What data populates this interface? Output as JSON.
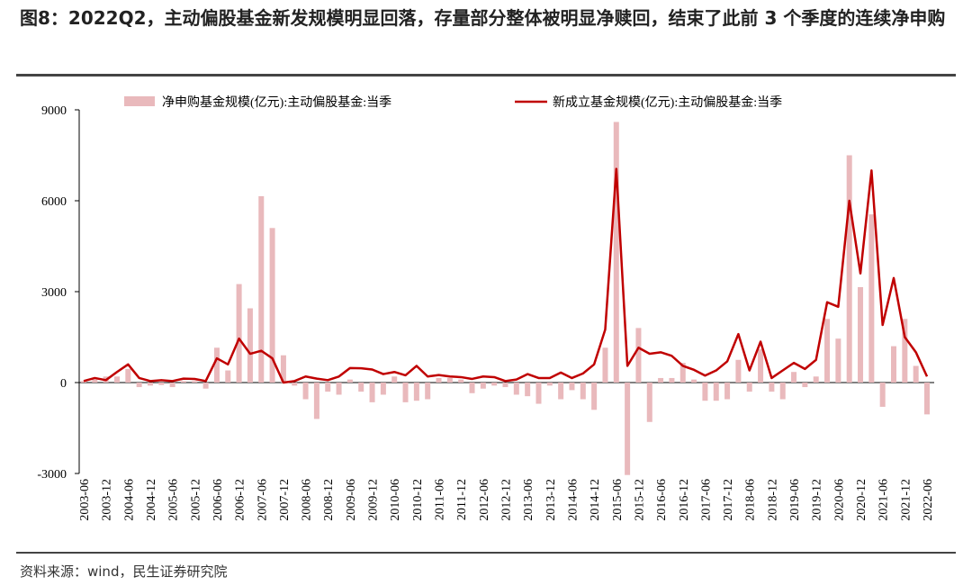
{
  "chart_data": {
    "type": "bar",
    "title": "图8：2022Q2，主动偏股基金新发规模明显回落，存量部分整体被明显净赎回，结束了此前 3 个季度的连续净申购",
    "source": "资料来源：wind，民生证券研究院",
    "categories": [
      "2003-06",
      null,
      "2003-12",
      null,
      "2004-06",
      null,
      "2004-12",
      null,
      "2005-06",
      null,
      "2005-12",
      null,
      "2006-06",
      null,
      "2006-12",
      null,
      "2007-06",
      null,
      "2007-12",
      null,
      "2008-06",
      null,
      "2008-12",
      null,
      "2009-06",
      null,
      "2009-12",
      null,
      "2010-06",
      null,
      "2010-12",
      null,
      "2011-06",
      null,
      "2011-12",
      null,
      "2012-06",
      null,
      "2012-12",
      null,
      "2013-06",
      null,
      "2013-12",
      null,
      "2014-06",
      null,
      "2014-12",
      null,
      "2015-06",
      null,
      "2015-12",
      null,
      "2016-06",
      null,
      "2016-12",
      null,
      "2017-06",
      null,
      "2017-12",
      null,
      "2018-06",
      null,
      "2018-12",
      null,
      "2019-06",
      null,
      "2019-12",
      null,
      "2020-06",
      null,
      "2020-12",
      null,
      "2021-06",
      null,
      "2021-12",
      null,
      "2022-06"
    ],
    "series": [
      {
        "name": "净申购基金规模(亿元):主动偏股基金:当季",
        "type": "bar",
        "color": "#e9b9bc",
        "values": [
          50,
          100,
          200,
          200,
          450,
          -150,
          -100,
          -80,
          -150,
          50,
          50,
          -200,
          1150,
          400,
          3250,
          2450,
          6150,
          5100,
          900,
          -100,
          -550,
          -1200,
          -300,
          -400,
          100,
          -300,
          -650,
          -400,
          200,
          -650,
          -600,
          -550,
          150,
          150,
          100,
          -350,
          -200,
          -100,
          -150,
          -400,
          -450,
          -700,
          -100,
          -550,
          -250,
          -550,
          -900,
          1150,
          8600,
          -3050,
          1800,
          -1300,
          150,
          150,
          650,
          100,
          -600,
          -600,
          -550,
          750,
          -300,
          1100,
          -300,
          -550,
          350,
          -150,
          200,
          2100,
          1450,
          7500,
          3150,
          5550,
          -800,
          1200,
          2100,
          550,
          -1050
        ]
      },
      {
        "name": "新成立基金规模(亿元):主动偏股基金:当季",
        "type": "line",
        "color": "#c00000",
        "values": [
          50,
          150,
          80,
          350,
          600,
          150,
          50,
          80,
          50,
          130,
          120,
          50,
          800,
          600,
          1450,
          950,
          1050,
          800,
          0,
          50,
          200,
          130,
          80,
          200,
          480,
          470,
          430,
          280,
          350,
          240,
          550,
          200,
          250,
          200,
          180,
          120,
          200,
          180,
          50,
          100,
          280,
          150,
          150,
          330,
          150,
          300,
          600,
          1750,
          7050,
          550,
          1150,
          950,
          1000,
          880,
          550,
          420,
          230,
          400,
          700,
          1600,
          400,
          1350,
          150,
          400,
          650,
          450,
          750,
          2650,
          2500,
          6000,
          3600,
          7000,
          1900,
          3450,
          1500,
          1000,
          200
        ]
      }
    ],
    "ylim": [
      -3000,
      9000
    ],
    "yticks": [
      9000,
      6000,
      3000,
      0,
      -3000
    ]
  }
}
